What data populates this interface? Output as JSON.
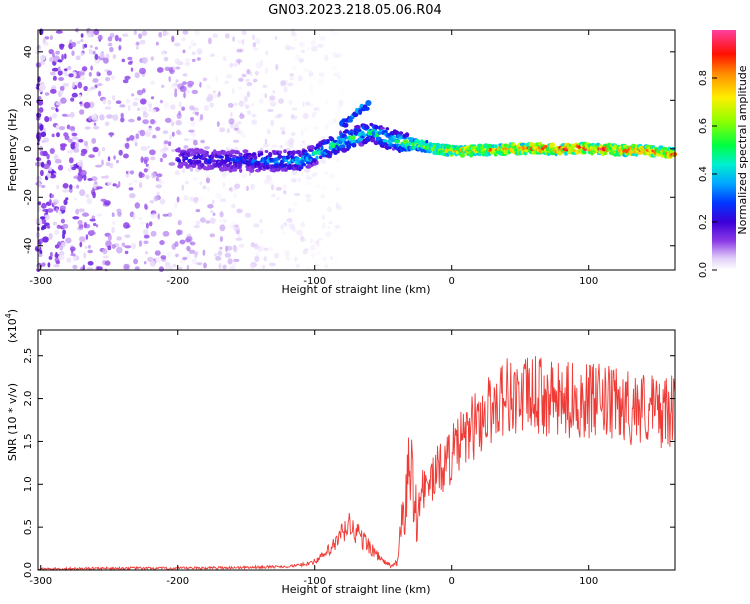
{
  "title": "GN03.2023.218.05.06.R04",
  "colors": {
    "snr_line": "#ef3b36",
    "spectrum_colormap": [
      "#ffffff",
      "#c9a8f2",
      "#7a2be0",
      "#3c00d8",
      "#0036ff",
      "#00c8ff",
      "#00ff84",
      "#b8ff00",
      "#ffea00",
      "#ff6a00",
      "#ff0000",
      "#ff3fa0"
    ]
  },
  "chart_data": [
    {
      "type": "heatmap",
      "xlabel": "Height of straight line (km)",
      "ylabel": "Frequency (Hz)",
      "xlim": [
        -302,
        163
      ],
      "ylim": [
        -50,
        49
      ],
      "x_ticks": [
        -300,
        -200,
        -100,
        0,
        100
      ],
      "x_tick_labels": [
        "-300",
        "-200",
        "-100",
        "0",
        "100"
      ],
      "y_ticks": [
        -40,
        -20,
        0,
        20,
        40
      ],
      "y_tick_labels": [
        "-40",
        "-20",
        "0",
        "20",
        "40"
      ],
      "colorbar": {
        "label": "Normalized spectral amplitude",
        "range": [
          0,
          1
        ],
        "ticks": [
          0.0,
          0.2,
          0.4,
          0.6,
          0.8
        ],
        "tick_labels": [
          "0.0",
          "0.2",
          "0.4",
          "0.6",
          "0.8"
        ]
      },
      "noise_region_x": [
        -302,
        -120
      ],
      "main_trace": {
        "description_points_x": [
          -200,
          -150,
          -110,
          -80,
          -60,
          -45,
          -30,
          0,
          50,
          100,
          150,
          163
        ],
        "freq_hz": [
          -4,
          -5,
          -5,
          3,
          7,
          4,
          2,
          -1,
          0,
          0,
          -1,
          -2
        ],
        "peak_amplitude": [
          0.25,
          0.3,
          0.45,
          0.55,
          0.5,
          0.55,
          0.6,
          0.75,
          0.9,
          0.95,
          0.85,
          0.9
        ]
      },
      "upper_branch": {
        "x": [
          -80,
          -70,
          -60
        ],
        "freq_hz": [
          10,
          15,
          18
        ],
        "peak_amplitude": [
          0.35,
          0.4,
          0.3
        ]
      },
      "grid": false
    },
    {
      "type": "line",
      "xlabel": "Height of straight line (km)",
      "ylabel": "SNR (10 * v/v)",
      "y_multiplier": "(x10",
      "y_multiplier_exp": "4",
      "y_multiplier_close": ")",
      "xlim": [
        -302,
        163
      ],
      "ylim": [
        0,
        2.8
      ],
      "x_ticks": [
        -300,
        -200,
        -100,
        0,
        100
      ],
      "x_tick_labels": [
        "-300",
        "-200",
        "-100",
        "0",
        "100"
      ],
      "y_ticks": [
        0.0,
        0.5,
        1.0,
        1.5,
        2.0,
        2.5
      ],
      "y_tick_labels": [
        "0.0",
        "0.5",
        "1.0",
        "1.5",
        "2.0",
        "2.5"
      ],
      "series": [
        {
          "x": [
            -302,
            -250,
            -200,
            -150,
            -120,
            -110,
            -100,
            -95,
            -90,
            -85,
            -80,
            -75,
            -70,
            -65,
            -60,
            -55,
            -50,
            -45,
            -42,
            -40,
            -38,
            -36,
            -34,
            -32,
            -30,
            -28,
            -26,
            -24,
            -20,
            -15,
            -10,
            -5,
            0,
            5,
            10,
            15,
            20,
            25,
            30,
            35,
            40,
            45,
            50,
            60,
            70,
            80,
            90,
            100,
            110,
            120,
            130,
            140,
            150,
            160,
            163
          ],
          "y": [
            0.01,
            0.02,
            0.02,
            0.03,
            0.04,
            0.06,
            0.1,
            0.15,
            0.22,
            0.3,
            0.42,
            0.52,
            0.45,
            0.35,
            0.28,
            0.18,
            0.1,
            0.06,
            0.05,
            0.1,
            0.3,
            0.55,
            0.8,
            1.05,
            1.2,
            0.8,
            0.75,
            0.85,
            0.95,
            1.05,
            1.15,
            1.25,
            1.35,
            1.45,
            1.55,
            1.65,
            1.75,
            1.82,
            1.9,
            2.0,
            2.05,
            2.02,
            2.0,
            2.05,
            2.0,
            1.95,
            2.0,
            1.97,
            1.95,
            1.92,
            1.9,
            1.9,
            1.85,
            1.85,
            1.8
          ]
        }
      ],
      "grid": false
    }
  ]
}
